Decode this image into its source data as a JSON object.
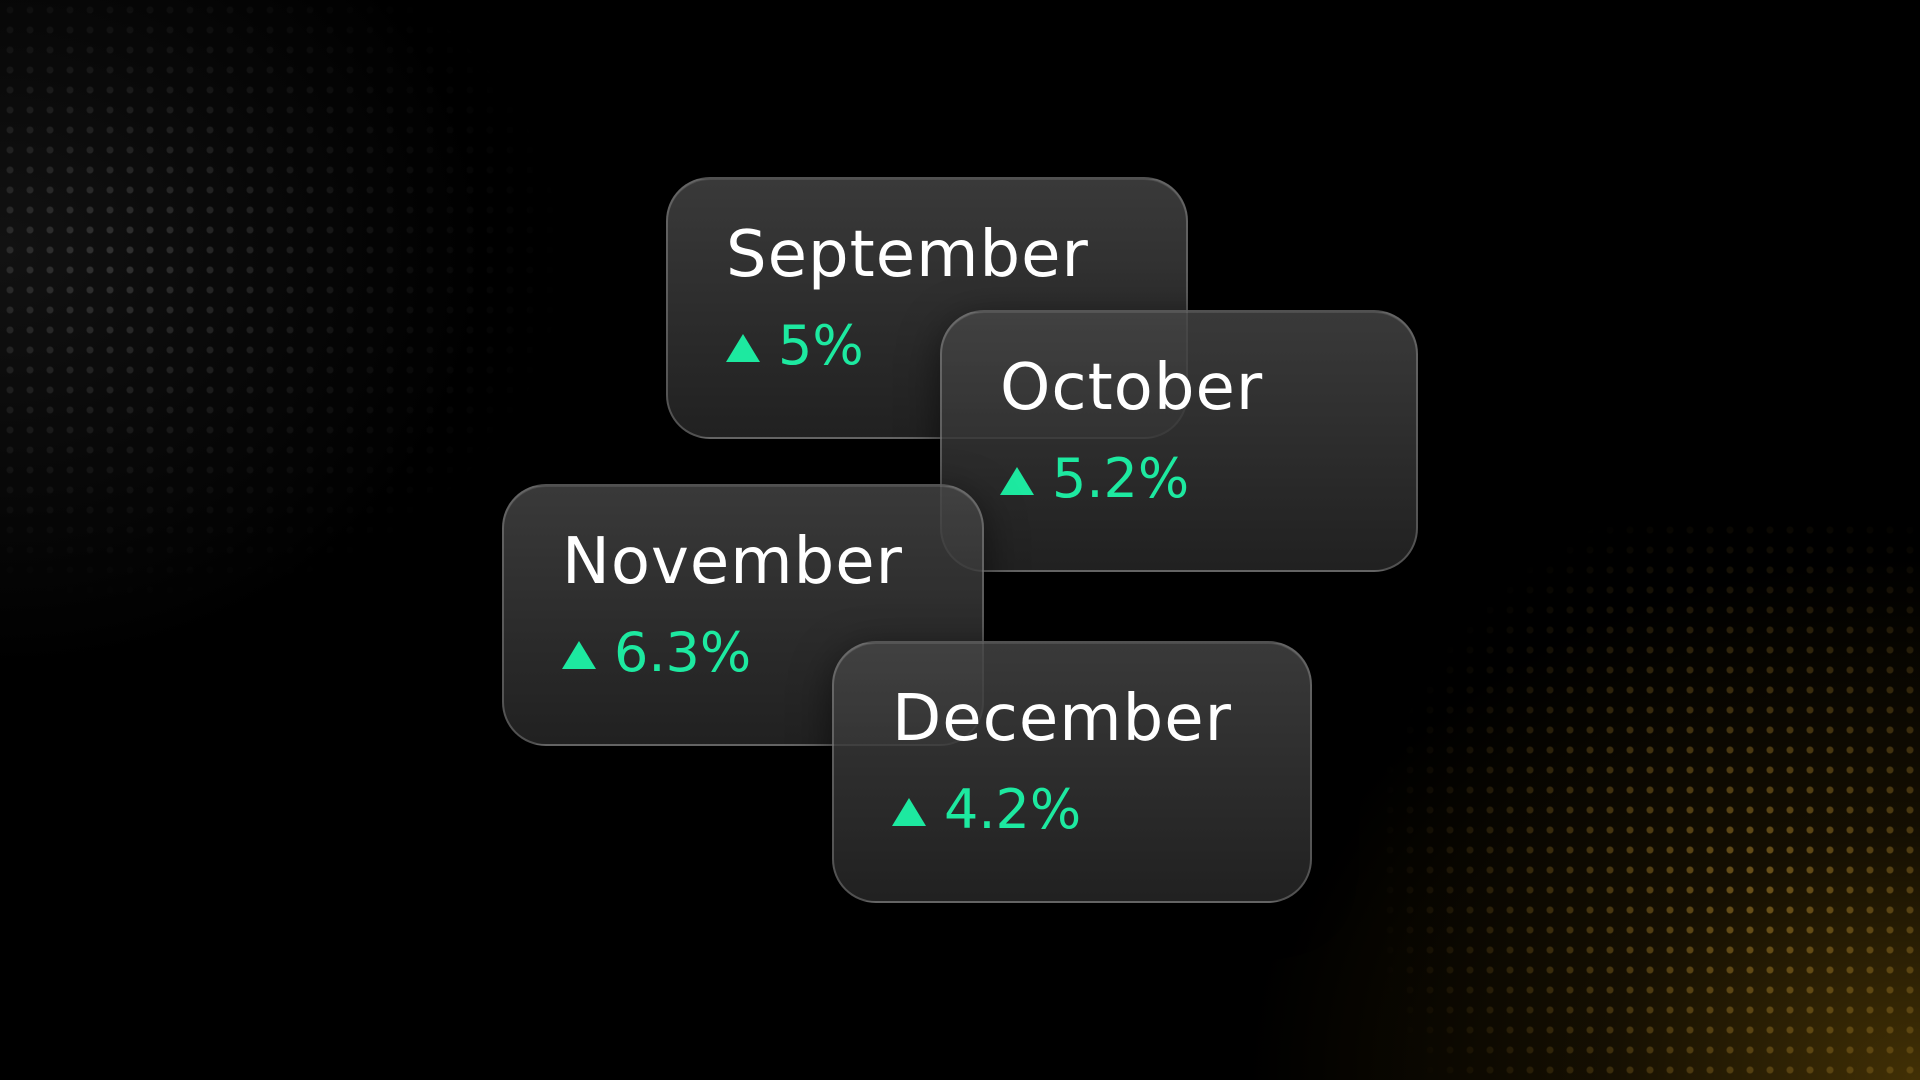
{
  "colors": {
    "background": "#000000",
    "card_text": "#ffffff",
    "positive": "#1de9a0",
    "glow": "#78580a"
  },
  "cards": [
    {
      "month": "September",
      "change": "5%",
      "direction_icon": "triangle-up-icon"
    },
    {
      "month": "October",
      "change": "5.2%",
      "direction_icon": "triangle-up-icon"
    },
    {
      "month": "November",
      "change": "6.3%",
      "direction_icon": "triangle-up-icon"
    },
    {
      "month": "December",
      "change": "4.2%",
      "direction_icon": "triangle-up-icon"
    }
  ]
}
